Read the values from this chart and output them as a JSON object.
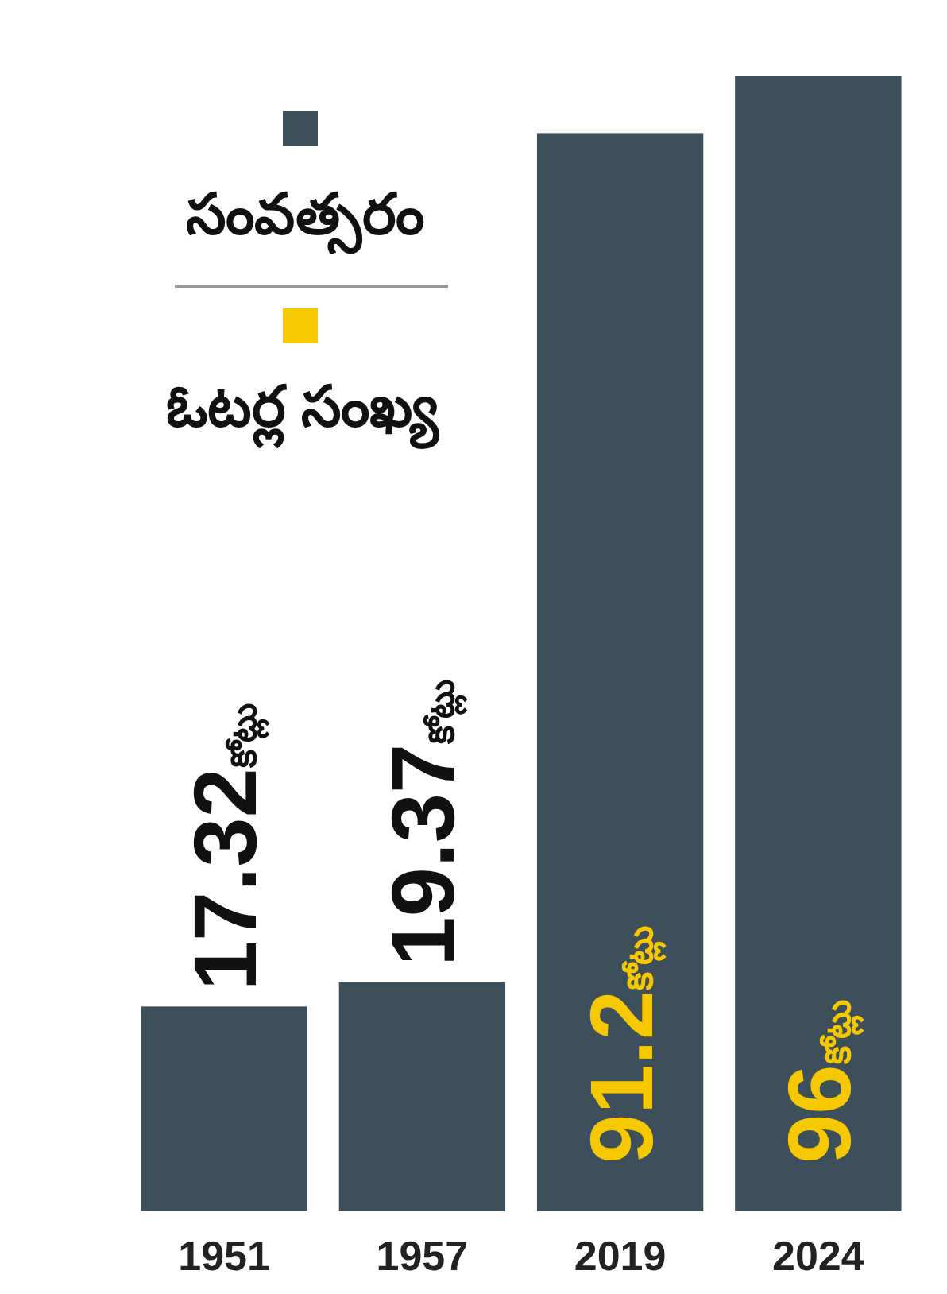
{
  "chart_data": {
    "type": "bar",
    "categories": [
      "1951",
      "1957",
      "2019",
      "2024"
    ],
    "series": [
      {
        "name": "సంవత్సరం",
        "color": "#3d4f5a",
        "values": [
          17.32,
          19.37,
          91.2,
          96
        ],
        "value_labels": [
          "17.32కోట్లు",
          "19.37కోట్లు",
          "91.2కోట్లు",
          "96కోట్లు"
        ]
      }
    ],
    "annotations": [
      "ఓటర్ల సంఖ్య"
    ],
    "legend": "top left"
  }
}
